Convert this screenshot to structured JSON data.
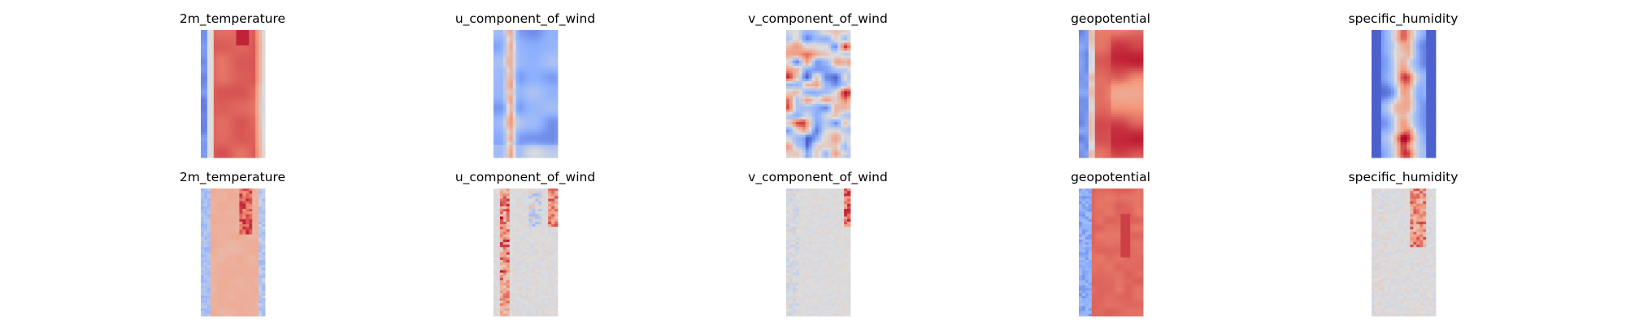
{
  "chart_data": {
    "type": "heatmap",
    "colormap": "coolwarm",
    "axes_visible": false,
    "grid": false,
    "rows": [
      {
        "panels": [
          {
            "title": "2m_temperature",
            "pattern": "temperature"
          },
          {
            "title": "u_component_of_wind",
            "pattern": "u_wind"
          },
          {
            "title": "v_component_of_wind",
            "pattern": "v_wind"
          },
          {
            "title": "geopotential",
            "pattern": "geopotential"
          },
          {
            "title": "specific_humidity",
            "pattern": "humidity"
          }
        ]
      },
      {
        "panels": [
          {
            "title": "2m_temperature",
            "pattern": "temperature_anomaly"
          },
          {
            "title": "u_component_of_wind",
            "pattern": "u_wind_anomaly"
          },
          {
            "title": "v_component_of_wind",
            "pattern": "v_wind_anomaly"
          },
          {
            "title": "geopotential",
            "pattern": "geopotential_anomaly"
          },
          {
            "title": "specific_humidity",
            "pattern": "humidity_anomaly"
          }
        ]
      }
    ]
  }
}
